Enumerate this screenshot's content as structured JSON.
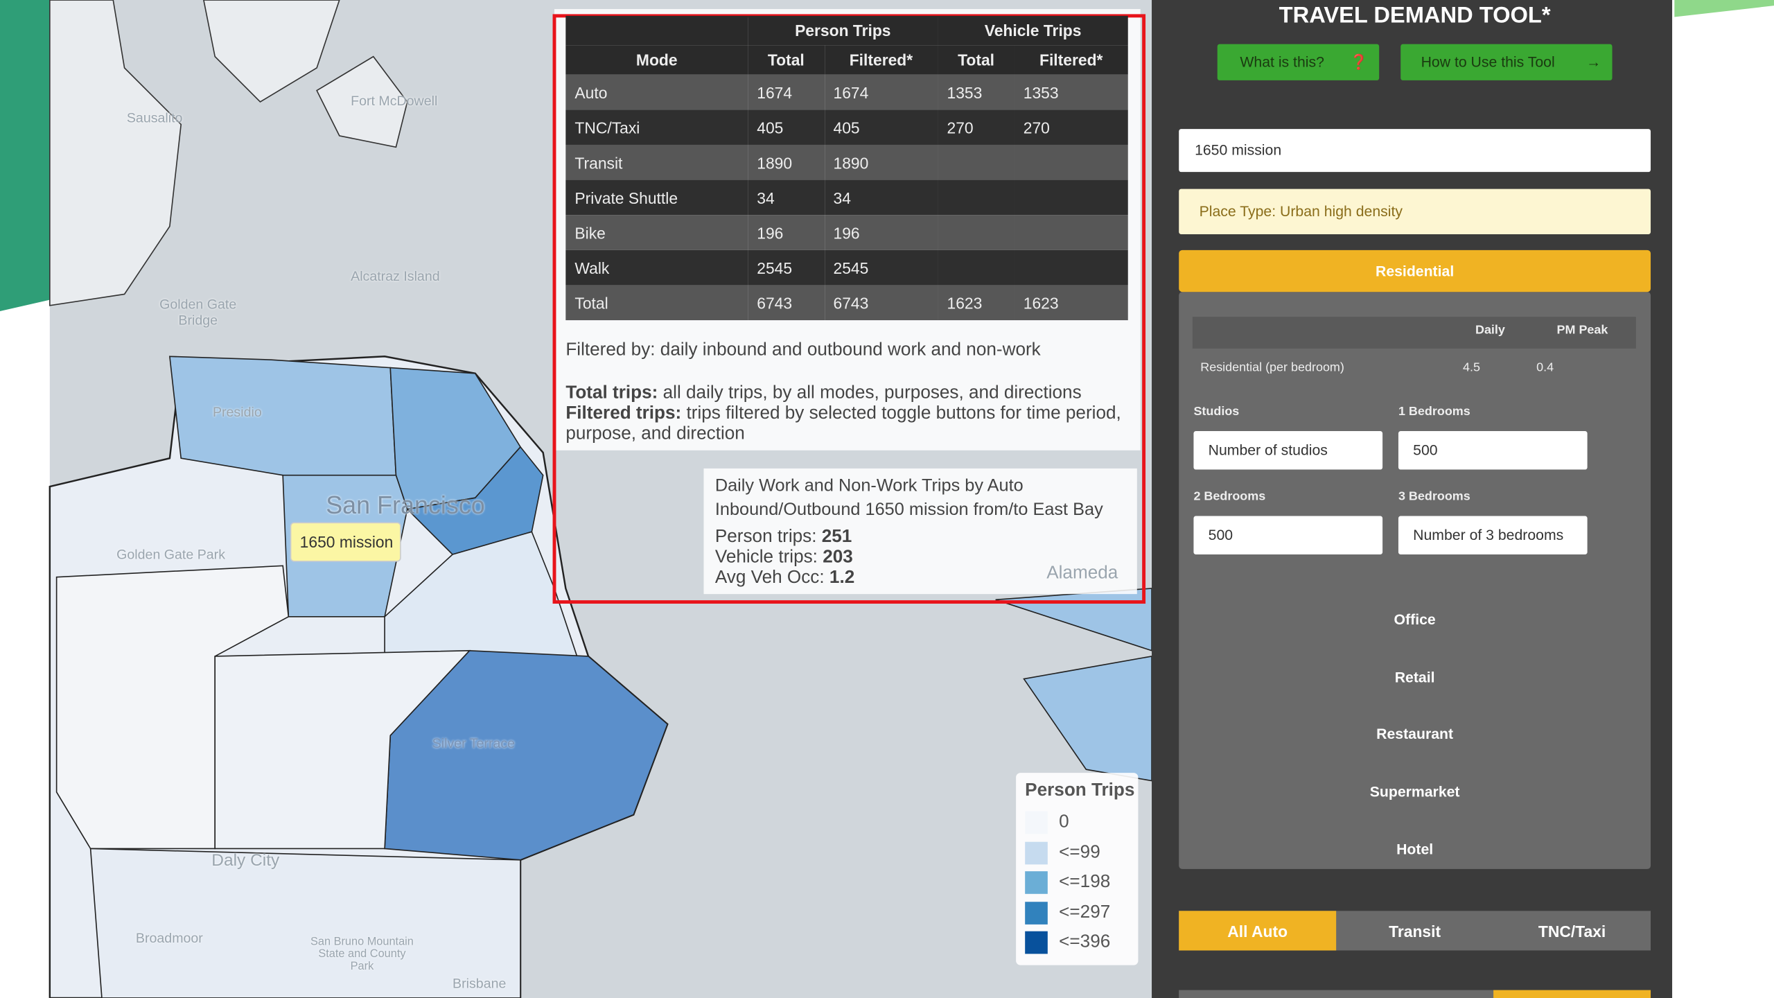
{
  "map": {
    "place_labels": [
      "Sausalito",
      "Fort McDowell",
      "Alcatraz Island",
      "Golden Gate Bridge",
      "Presidio",
      "San Francisco",
      "Golden Gate Park",
      "Silver Terrace",
      "Daly City",
      "Broadmoor",
      "San Bruno Mountain State and County Park",
      "Brisbane",
      "Alameda"
    ],
    "marker_label": "1650 mission"
  },
  "trip_table": {
    "group_headers": [
      "Person Trips",
      "Vehicle Trips"
    ],
    "columns": [
      "Mode",
      "Total",
      "Filtered*",
      "Total",
      "Filtered*"
    ],
    "rows": [
      [
        "Auto",
        1674,
        1674,
        1353,
        1353
      ],
      [
        "TNC/Taxi",
        405,
        405,
        270,
        270
      ],
      [
        "Transit",
        1890,
        1890
      ],
      [
        "Private Shuttle",
        34,
        34
      ],
      [
        "Bike",
        196,
        196
      ],
      [
        "Walk",
        2545,
        2545
      ],
      [
        "Total",
        6743,
        6743,
        1623,
        1623
      ]
    ],
    "filter_note": "Filtered by: daily inbound and outbound work and non-work",
    "definitions": [
      {
        "term": "Total trips:",
        "text": "all daily trips, by all modes, purposes, and directions"
      },
      {
        "term": "Filtered trips:",
        "text": "trips filtered by selected toggle buttons for time period, purpose, and direction"
      }
    ]
  },
  "tooltip": {
    "title_lines": [
      "Daily Work and Non-Work Trips by Auto",
      "Inbound/Outbound 1650 mission from/to East Bay"
    ],
    "items": [
      {
        "label": "Person trips:",
        "value": 251
      },
      {
        "label": "Vehicle trips:",
        "value": 203
      },
      {
        "label": "Avg Veh Occ:",
        "value": 1.2
      }
    ]
  },
  "legend": {
    "title": "Person Trips",
    "items": [
      {
        "label": "0",
        "color": "#f4f7fb"
      },
      {
        "label": "<=99",
        "color": "#c6dbef"
      },
      {
        "label": "<=198",
        "color": "#6baed6"
      },
      {
        "label": "<=297",
        "color": "#3182bd"
      },
      {
        "label": "<=396",
        "color": "#08519c"
      }
    ]
  },
  "sidebar": {
    "title": "TRAVEL DEMAND TOOL*",
    "buttons": [
      "What is this?",
      "How to Use this Tool"
    ],
    "address": "1650 mission",
    "place_type": "Place Type: Urban high density",
    "active_land_use": "Residential",
    "rate_columns": [
      "Daily",
      "PM Peak"
    ],
    "rates": [
      {
        "name": "Residential (per bedroom)",
        "daily": 4.5,
        "pm_peak": 0.4
      }
    ],
    "inputs": [
      {
        "label": "Studios",
        "placeholder": "Number of studios"
      },
      {
        "label": "1 Bedrooms",
        "value": 500
      },
      {
        "label": "2 Bedrooms",
        "value": 500
      },
      {
        "label": "3 Bedrooms",
        "placeholder": "Number of 3 bedrooms"
      }
    ],
    "other_land_uses": [
      "Office",
      "Retail",
      "Restaurant",
      "Supermarket",
      "Hotel"
    ],
    "modes": [
      "All Auto",
      "Transit",
      "TNC/Taxi"
    ]
  }
}
